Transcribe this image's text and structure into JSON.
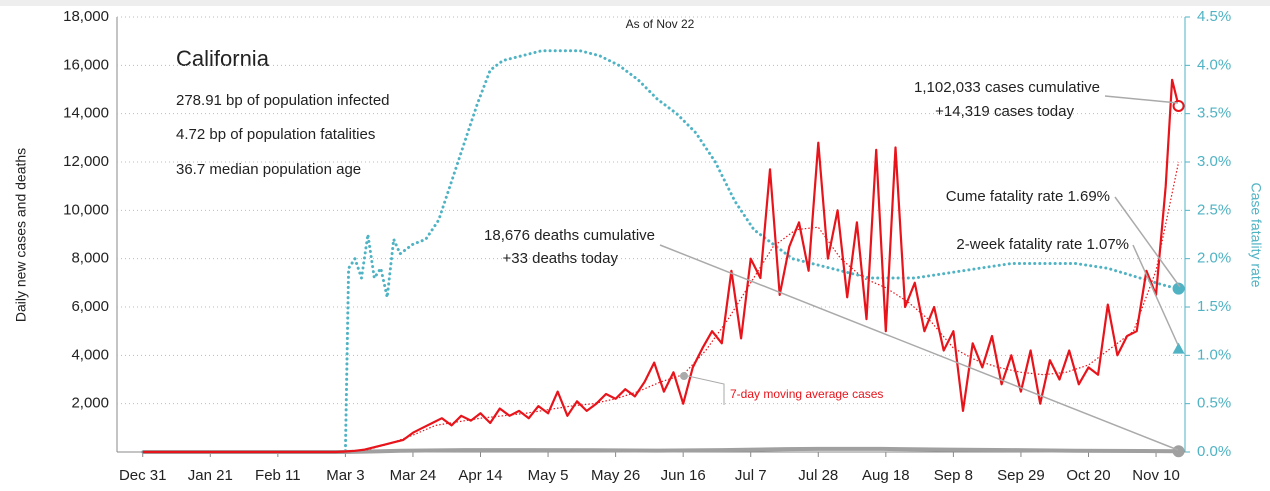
{
  "chart_data": {
    "type": "line",
    "subtitle": "As of Nov 22",
    "title": "California",
    "stats": [
      "278.91 bp of population infected",
      "4.72 bp of population fatalities",
      "36.7 median population age"
    ],
    "ylabel": "Daily new cases and deaths",
    "y2label": "Case fatality rate",
    "xlim": [
      -8,
      324
    ],
    "xticks": [
      {
        "value": 0,
        "label": "Dec 31"
      },
      {
        "value": 21,
        "label": "Jan 21"
      },
      {
        "value": 42,
        "label": "Feb 11"
      },
      {
        "value": 63,
        "label": "Mar 3"
      },
      {
        "value": 84,
        "label": "Mar 24"
      },
      {
        "value": 105,
        "label": "Apr 14"
      },
      {
        "value": 126,
        "label": "May 5"
      },
      {
        "value": 147,
        "label": "May 26"
      },
      {
        "value": 168,
        "label": "Jun 16"
      },
      {
        "value": 189,
        "label": "Jul 7"
      },
      {
        "value": 210,
        "label": "Jul 28"
      },
      {
        "value": 231,
        "label": "Aug 18"
      },
      {
        "value": 252,
        "label": "Sep 8"
      },
      {
        "value": 273,
        "label": "Sep 29"
      },
      {
        "value": 294,
        "label": "Oct 20"
      },
      {
        "value": 315,
        "label": "Nov 10"
      }
    ],
    "ylim": [
      0,
      18000
    ],
    "yticks": [
      {
        "value": 2000,
        "label": "2,000"
      },
      {
        "value": 4000,
        "label": "4,000"
      },
      {
        "value": 6000,
        "label": "6,000"
      },
      {
        "value": 8000,
        "label": "8,000"
      },
      {
        "value": 10000,
        "label": "10,000"
      },
      {
        "value": 12000,
        "label": "12,000"
      },
      {
        "value": 14000,
        "label": "14,000"
      },
      {
        "value": 16000,
        "label": "16,000"
      },
      {
        "value": 18000,
        "label": "18,000"
      }
    ],
    "y2lim": [
      0,
      4.5
    ],
    "y2ticks": [
      {
        "value": 0,
        "label": "0.0%"
      },
      {
        "value": 0.5,
        "label": "0.5%"
      },
      {
        "value": 1,
        "label": "1.0%"
      },
      {
        "value": 1.5,
        "label": "1.5%"
      },
      {
        "value": 2,
        "label": "2.0%"
      },
      {
        "value": 2.5,
        "label": "2.5%"
      },
      {
        "value": 3,
        "label": "3.0%"
      },
      {
        "value": 3.5,
        "label": "3.5%"
      },
      {
        "value": 4,
        "label": "4.0%"
      },
      {
        "value": 4.5,
        "label": "4.5%"
      }
    ],
    "grid": true,
    "series": [
      {
        "name": "Case fatality rate",
        "color": "#4fb3c4",
        "axis": "y2",
        "line_style": "dotted",
        "end_marker": "circle",
        "x": [
          0,
          63,
          64,
          66,
          68,
          70,
          72,
          74,
          76,
          78,
          80,
          84,
          88,
          92,
          96,
          100,
          104,
          108,
          112,
          118,
          124,
          130,
          136,
          142,
          148,
          154,
          160,
          166,
          172,
          178,
          184,
          190,
          196,
          202,
          208,
          214,
          220,
          226,
          232,
          240,
          250,
          260,
          270,
          280,
          290,
          300,
          310,
          318,
          322
        ],
        "values": [
          0,
          0,
          1.9,
          2.0,
          1.8,
          2.25,
          1.8,
          1.9,
          1.6,
          2.2,
          2.05,
          2.15,
          2.2,
          2.4,
          2.8,
          3.2,
          3.6,
          3.95,
          4.05,
          4.1,
          4.15,
          4.15,
          4.15,
          4.1,
          4.0,
          3.85,
          3.65,
          3.5,
          3.3,
          3.0,
          2.6,
          2.3,
          2.15,
          2.0,
          1.95,
          1.9,
          1.85,
          1.8,
          1.8,
          1.8,
          1.85,
          1.9,
          1.95,
          1.95,
          1.95,
          1.9,
          1.8,
          1.72,
          1.69
        ]
      },
      {
        "name": "Deaths",
        "color": "#a0a0a0",
        "line_style": "thick",
        "end_marker": "circle",
        "x": [
          0,
          63,
          80,
          100,
          120,
          140,
          160,
          180,
          200,
          210,
          230,
          250,
          270,
          290,
          310,
          322
        ],
        "values": [
          0,
          0,
          50,
          80,
          80,
          70,
          60,
          80,
          120,
          130,
          130,
          100,
          80,
          50,
          40,
          33
        ]
      },
      {
        "name": "7-day moving average cases",
        "color": "#e8141b",
        "line_style": "thin-dotted",
        "x": [
          0,
          63,
          70,
          77,
          84,
          91,
          98,
          105,
          112,
          119,
          126,
          133,
          140,
          147,
          154,
          161,
          168,
          175,
          182,
          189,
          196,
          203,
          210,
          217,
          224,
          231,
          238,
          245,
          252,
          259,
          266,
          273,
          280,
          287,
          294,
          301,
          308,
          315,
          322
        ],
        "values": [
          0,
          0,
          100,
          350,
          700,
          1100,
          1250,
          1400,
          1500,
          1600,
          1750,
          1900,
          2000,
          2200,
          2500,
          2900,
          3200,
          4200,
          5500,
          7000,
          8500,
          9200,
          9300,
          8000,
          7200,
          6800,
          6200,
          5400,
          4300,
          3800,
          3500,
          3300,
          3200,
          3300,
          3600,
          4300,
          5000,
          7500,
          12000
        ]
      },
      {
        "name": "Cases",
        "color": "#e8141b",
        "line_style": "solid",
        "end_marker": "circle",
        "x": [
          0,
          60,
          63,
          66,
          69,
          72,
          75,
          78,
          81,
          84,
          87,
          90,
          93,
          96,
          99,
          102,
          105,
          108,
          111,
          114,
          117,
          120,
          123,
          126,
          129,
          132,
          135,
          138,
          141,
          144,
          147,
          150,
          153,
          156,
          159,
          162,
          165,
          168,
          171,
          174,
          177,
          180,
          183,
          186,
          189,
          192,
          195,
          198,
          201,
          204,
          207,
          210,
          213,
          216,
          219,
          222,
          225,
          228,
          231,
          234,
          237,
          240,
          243,
          246,
          249,
          252,
          255,
          258,
          261,
          264,
          267,
          270,
          273,
          276,
          279,
          282,
          285,
          288,
          291,
          294,
          297,
          300,
          303,
          306,
          309,
          312,
          315,
          318,
          320,
          322
        ],
        "values": [
          0,
          0,
          20,
          50,
          100,
          200,
          300,
          400,
          500,
          800,
          1000,
          1200,
          1400,
          1100,
          1500,
          1300,
          1600,
          1200,
          1800,
          1500,
          1700,
          1400,
          1900,
          1600,
          2500,
          1500,
          2100,
          1700,
          2000,
          2400,
          2200,
          2600,
          2300,
          2900,
          3700,
          2500,
          3300,
          2000,
          3500,
          4300,
          5000,
          4500,
          7500,
          4700,
          8000,
          7200,
          11700,
          6500,
          8500,
          9500,
          7500,
          12800,
          8000,
          10000,
          6400,
          9500,
          5500,
          12500,
          5000,
          12600,
          6000,
          7000,
          5000,
          6000,
          4200,
          5000,
          1700,
          4500,
          3500,
          4800,
          2800,
          4000,
          2500,
          4200,
          2000,
          3800,
          3000,
          4200,
          2800,
          3500,
          3200,
          6100,
          4000,
          4800,
          5000,
          7500,
          6500,
          11000,
          15400,
          14319
        ]
      }
    ],
    "two_week_fatality_rate": {
      "x": 322,
      "value": 1.07
    },
    "annotations": [
      "1,102,033 cases cumulative",
      "+14,319 cases today",
      "Cume fatality rate 1.69%",
      "2-week fatality rate 1.07%",
      "18,676 deaths cumulative",
      "+33 deaths today",
      "7-day moving average cases"
    ]
  }
}
